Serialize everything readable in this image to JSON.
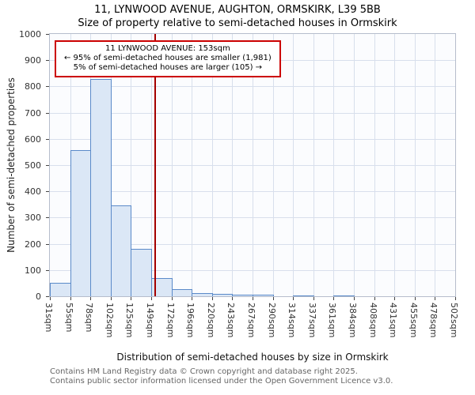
{
  "chart_data": {
    "type": "bar",
    "title": "11, LYNWOOD AVENUE, AUGHTON, ORMSKIRK, L39 5BB",
    "subtitle": "Size of property relative to semi-detached houses in Ormskirk",
    "xlabel": "Distribution of semi-detached houses by size in Ormskirk",
    "ylabel": "Number of semi-detached properties",
    "xlim": [
      31,
      502
    ],
    "ylim": [
      0,
      1000
    ],
    "ytick_step": 100,
    "grid": true,
    "legend": "none",
    "bin_edges_sqm": [
      31,
      55,
      78,
      102,
      125,
      149,
      172,
      196,
      220,
      243,
      267,
      290,
      314,
      337,
      361,
      384,
      408,
      431,
      455,
      478,
      502
    ],
    "categories": [
      "31sqm",
      "55sqm",
      "78sqm",
      "102sqm",
      "125sqm",
      "149sqm",
      "172sqm",
      "196sqm",
      "220sqm",
      "243sqm",
      "267sqm",
      "290sqm",
      "314sqm",
      "337sqm",
      "361sqm",
      "384sqm",
      "408sqm",
      "431sqm",
      "455sqm",
      "478sqm",
      "502sqm"
    ],
    "values": [
      50,
      558,
      828,
      345,
      182,
      70,
      28,
      12,
      8,
      5,
      6,
      0,
      4,
      0,
      3,
      0,
      0,
      0,
      0,
      0
    ],
    "marker": {
      "value_sqm": 153,
      "smaller_pct": 95,
      "smaller_count": "1,981",
      "larger_pct": 5,
      "larger_count": "105"
    },
    "annotation": {
      "line1": "11 LYNWOOD AVENUE: 153sqm",
      "line2": "← 95% of semi-detached houses are smaller (1,981)",
      "line3": "5% of semi-detached houses are larger (105) →"
    },
    "colors": {
      "bar_fill": "#dbe7f6",
      "bar_edge": "#5b8ac9",
      "marker_line": "#a40000",
      "annotation_border": "#cc0000",
      "grid": "#d8dfec"
    }
  },
  "footer": {
    "line1": "Contains HM Land Registry data © Crown copyright and database right 2025.",
    "line2": "Contains public sector information licensed under the Open Government Licence v3.0."
  }
}
